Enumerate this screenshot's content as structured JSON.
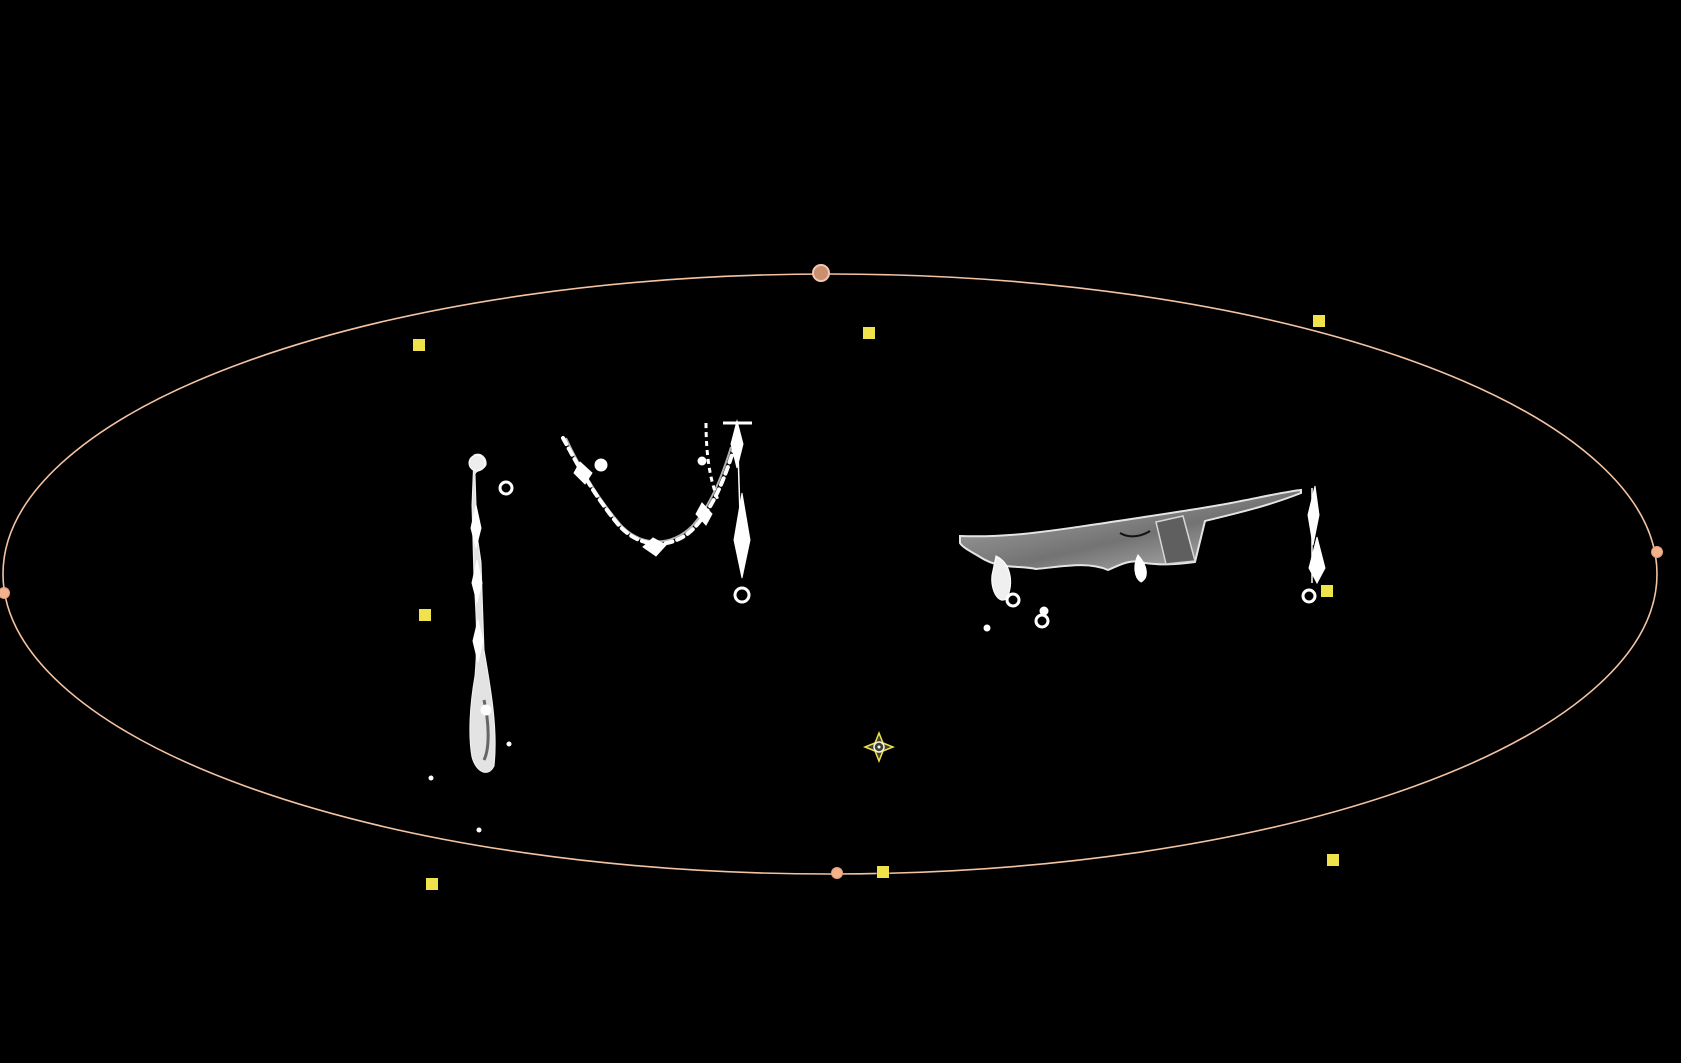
{
  "canvas": {
    "background": "#000000",
    "selection_ring_color": "#f3c3a2",
    "handle_color": "#f0e24b",
    "control_point_color": "#f2b28d",
    "artwork_color": "#ffffff"
  },
  "overlays": {
    "selection": "ellipse-selection-ring",
    "handles": "corner-and-edge-transform-handles",
    "center": "transform-center-icon"
  }
}
